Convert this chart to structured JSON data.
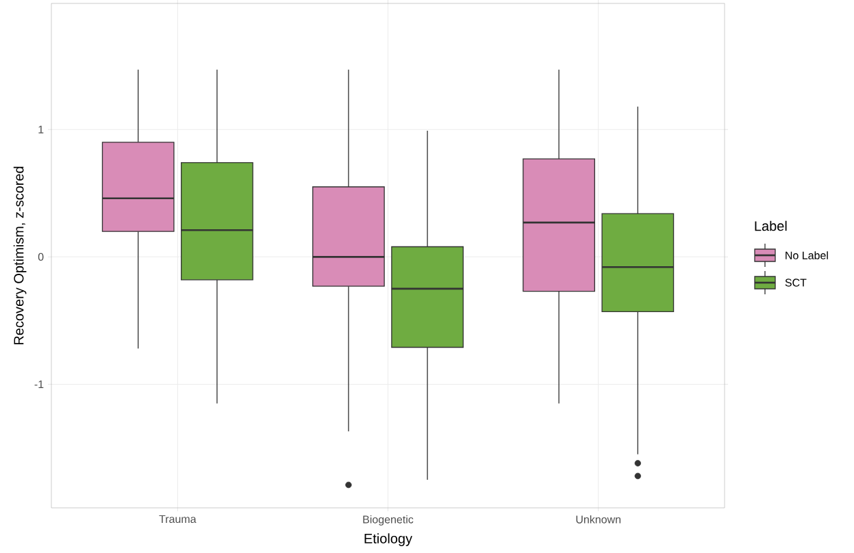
{
  "chart_data": {
    "type": "box",
    "xlabel": "Etiology",
    "ylabel": "Recovery Optimism, z-scored",
    "legend_title": "Label",
    "categories": [
      "Trauma",
      "Biogenetic",
      "Unknown"
    ],
    "ylim": [
      -1.97,
      1.99
    ],
    "yticks": [
      -1,
      0,
      1
    ],
    "grid": true,
    "legend": "right",
    "series": [
      {
        "name": "No Label",
        "color": "#d98cb7",
        "boxes": [
          {
            "low": -0.72,
            "q1": 0.2,
            "median": 0.46,
            "q3": 0.9,
            "high": 1.47
          },
          {
            "low": -1.37,
            "q1": -0.23,
            "median": 0.0,
            "q3": 0.55,
            "high": 1.47,
            "outliers": [
              -1.79
            ]
          },
          {
            "low": -1.15,
            "q1": -0.27,
            "median": 0.27,
            "q3": 0.77,
            "high": 1.47
          }
        ]
      },
      {
        "name": "SCT",
        "color": "#6fac41",
        "boxes": [
          {
            "low": -1.15,
            "q1": -0.18,
            "median": 0.21,
            "q3": 0.74,
            "high": 1.47
          },
          {
            "low": -1.75,
            "q1": -0.71,
            "median": -0.25,
            "q3": 0.08,
            "high": 0.99
          },
          {
            "low": -1.55,
            "q1": -0.43,
            "median": -0.08,
            "q3": 0.34,
            "high": 1.18,
            "outliers": [
              -1.62,
              -1.72
            ]
          }
        ]
      }
    ]
  }
}
